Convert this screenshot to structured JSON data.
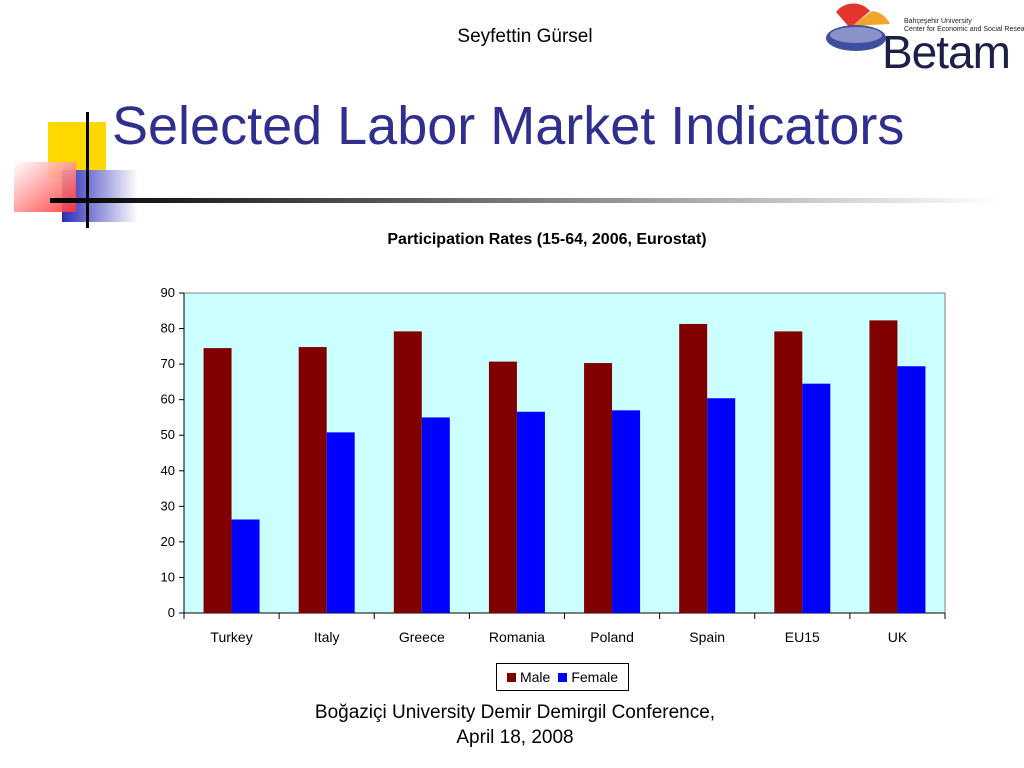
{
  "slide": {
    "author": "Seyfettin Gürsel",
    "title": "Selected Labor Market Indicators",
    "footer_line1": "Boğaziçi University Demir Demirgil Conference,",
    "footer_line2": "April 18, 2008"
  },
  "logo": {
    "university": "Bahçeşehir University",
    "center": "Center for Economic and Social Research",
    "wordmark": "Betam"
  },
  "colors": {
    "title": "#2e2f8f",
    "plot_background": "#ccffff",
    "male": "#800000",
    "female": "#0000ff"
  },
  "chart_data": {
    "type": "bar",
    "title": "Participation Rates (15-64, 2006, Eurostat)",
    "xlabel": "",
    "ylabel": "",
    "categories": [
      "Turkey",
      "Italy",
      "Greece",
      "Romania",
      "Poland",
      "Spain",
      "EU15",
      "UK"
    ],
    "series": [
      {
        "name": "Male",
        "color": "#800000",
        "values": [
          74.5,
          74.8,
          79.2,
          70.7,
          70.3,
          81.3,
          79.2,
          82.3
        ]
      },
      {
        "name": "Female",
        "color": "#0000ff",
        "values": [
          26.3,
          50.8,
          55.0,
          56.6,
          57.0,
          60.4,
          64.5,
          69.4
        ]
      }
    ],
    "ylim": [
      0,
      90
    ],
    "yticks": [
      0,
      10,
      20,
      30,
      40,
      50,
      60,
      70,
      80,
      90
    ],
    "grid": false,
    "legend_position": "bottom"
  }
}
